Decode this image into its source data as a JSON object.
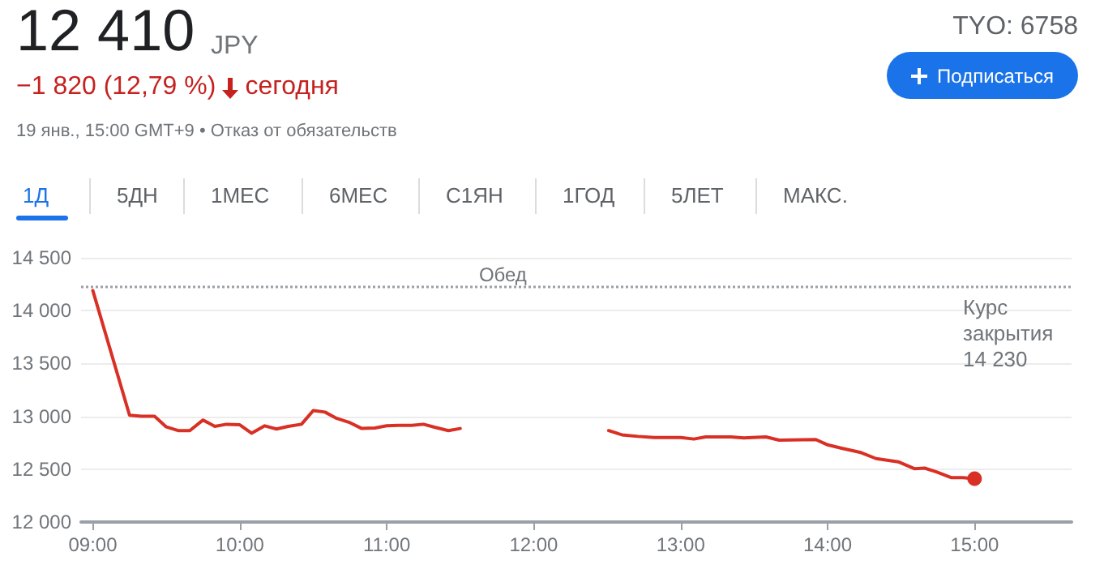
{
  "chart_data": {
    "type": "line",
    "title": "12 410",
    "subtitle": "JPY",
    "annotations": [
      "−1 820 (12,79 %)",
      "сегодня",
      "19 янв., 15:00 GMT+9 • Отказ от обязательств",
      "TYO: 6758",
      "Подписаться",
      "1Д",
      "5ДН",
      "1МЕС",
      "6МЕС",
      "С1ЯН",
      "1ГОД",
      "5ЛЕТ",
      "МАКС.",
      "Обед"
    ],
    "x": [
      9.0,
      9.25,
      9.33,
      9.42,
      9.5,
      9.58,
      9.66,
      9.75,
      9.83,
      9.91,
      10.0,
      10.08,
      10.17,
      10.25,
      10.33,
      10.42,
      10.5,
      10.58,
      10.66,
      10.75,
      10.83,
      10.92,
      11.0,
      11.08,
      11.17,
      11.25,
      11.33,
      11.42,
      11.5,
      12.0,
      12.51,
      12.6,
      12.71,
      12.82,
      13.0,
      13.09,
      13.17,
      13.34,
      13.43,
      13.58,
      13.67,
      13.92,
      14.0,
      14.09,
      14.22,
      14.33,
      14.48,
      14.59,
      14.66,
      14.74,
      14.84,
      14.92,
      15.0
    ],
    "series": [
      {
        "color": "#d93025",
        "values": [
          14190,
          13010,
          13000,
          13000,
          12900,
          12865,
          12865,
          12965,
          12905,
          12925,
          12920,
          12840,
          12910,
          12880,
          12905,
          12925,
          13055,
          13040,
          12980,
          12940,
          12885,
          12890,
          12910,
          12915,
          12915,
          12925,
          12895,
          12865,
          12885,
          null,
          12865,
          12825,
          12810,
          12800,
          12800,
          12785,
          12805,
          12805,
          12795,
          12805,
          12775,
          12780,
          12730,
          12700,
          12660,
          12600,
          12570,
          12505,
          12510,
          12475,
          12420,
          12420,
          12410
        ]
      }
    ],
    "xlim": [
      8.92,
      15.66
    ],
    "ylim": [
      12000,
      14500
    ],
    "xticks": [
      {
        "value": 9,
        "label": "09:00"
      },
      {
        "value": 10,
        "label": "10:00"
      },
      {
        "value": 11,
        "label": "11:00"
      },
      {
        "value": 12,
        "label": "12:00"
      },
      {
        "value": 13,
        "label": "13:00"
      },
      {
        "value": 14,
        "label": "14:00"
      },
      {
        "value": 15,
        "label": "15:00"
      }
    ],
    "yticks": [
      {
        "value": 12000,
        "label": "12 000"
      },
      {
        "value": 12500,
        "label": "12 500"
      },
      {
        "value": 13000,
        "label": "13 000"
      },
      {
        "value": 13500,
        "label": "13 500"
      },
      {
        "value": 14000,
        "label": "14 000"
      },
      {
        "value": 14500,
        "label": "14 500"
      }
    ],
    "ref_lines": [
      {
        "axis": "y",
        "value": 14230,
        "label": "Курс\nзакрытия\n14 230",
        "color": "#9aa0a6",
        "line_style": "dotted"
      }
    ],
    "grid": "y",
    "marker": "none",
    "line_style": "solid"
  }
}
